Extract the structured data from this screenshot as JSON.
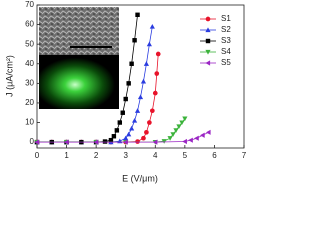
{
  "chart_data": {
    "type": "line",
    "x_label": "E (V/μm)",
    "y_label": "J (μA/cm²)",
    "xlim": [
      0,
      7
    ],
    "xticks": [
      0,
      1,
      2,
      3,
      4,
      5,
      6,
      7
    ],
    "ylim": [
      -3,
      70
    ],
    "yticks": [
      0,
      10,
      20,
      30,
      40,
      50,
      60,
      70
    ],
    "legend": "upper right",
    "series": [
      {
        "name": "S1",
        "color": "#e8132a",
        "marker": "circle",
        "x": [
          0,
          0.5,
          1,
          1.5,
          2,
          2.5,
          3,
          3.4,
          3.6,
          3.7,
          3.8,
          3.9,
          4.0,
          4.05,
          4.1
        ],
        "values": [
          0,
          0,
          0,
          0,
          0,
          0,
          0,
          0.3,
          2,
          5,
          10,
          16,
          25,
          35,
          45
        ]
      },
      {
        "name": "S2",
        "color": "#2a3ce0",
        "marker": "triangle-up",
        "x": [
          0,
          0.5,
          1,
          1.5,
          2,
          2.5,
          2.8,
          3.0,
          3.1,
          3.2,
          3.3,
          3.4,
          3.5,
          3.6,
          3.7,
          3.8,
          3.9
        ],
        "values": [
          0,
          0,
          0,
          0,
          0,
          0,
          0.5,
          2,
          4,
          7,
          11,
          16,
          23,
          31,
          40,
          50,
          59
        ]
      },
      {
        "name": "S3",
        "color": "#000000",
        "marker": "square",
        "x": [
          0,
          0.5,
          1,
          1.5,
          2,
          2.3,
          2.5,
          2.6,
          2.7,
          2.8,
          2.9,
          3.0,
          3.1,
          3.2,
          3.3,
          3.4
        ],
        "values": [
          0,
          0,
          0,
          0,
          0,
          0.3,
          1,
          3,
          6,
          10,
          15,
          22,
          30,
          40,
          52,
          65
        ]
      },
      {
        "name": "S4",
        "color": "#3bb33b",
        "marker": "triangle-down",
        "x": [
          0,
          1,
          2,
          3,
          4,
          4.3,
          4.5,
          4.6,
          4.7,
          4.8,
          4.9,
          5.0
        ],
        "values": [
          0,
          0,
          0,
          0,
          0,
          0.5,
          2,
          4,
          6,
          8,
          10,
          12
        ]
      },
      {
        "name": "S5",
        "color": "#9b26c4",
        "marker": "triangle-left",
        "x": [
          0,
          1,
          2,
          3,
          4,
          5,
          5.2,
          5.4,
          5.6,
          5.8
        ],
        "values": [
          0,
          0,
          0,
          0,
          0,
          0.3,
          1,
          2,
          3.5,
          5
        ]
      }
    ]
  }
}
